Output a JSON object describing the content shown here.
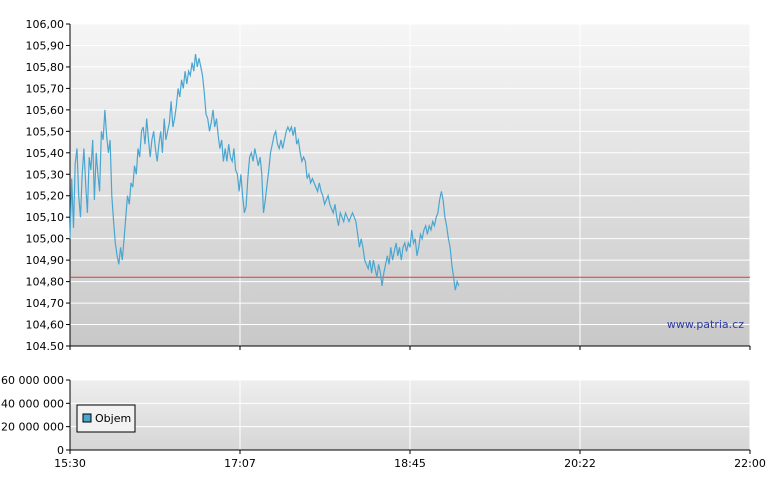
{
  "chart_data": [
    {
      "type": "line",
      "ylim": [
        104.5,
        106.0
      ],
      "y_ticks": [
        "104.50",
        "104,60",
        "104,70",
        "104,80",
        "104,90",
        "105,00",
        "105,10",
        "105,20",
        "105,30",
        "105,40",
        "105,50",
        "105,60",
        "105,70",
        "105,80",
        "105,90",
        "106,00"
      ],
      "x_ticks": [
        "15:30",
        "17:07",
        "18:45",
        "20:22",
        "22:00"
      ],
      "x_range_minutes": [
        930,
        1320
      ],
      "reference_line": {
        "value": 104.82,
        "color": "#e03a3a"
      },
      "line_color": "#4aa6d0",
      "watermark": "www.patria.cz",
      "grid": true,
      "series": [
        {
          "points": [
            [
              930,
              105.0
            ],
            [
              931,
              105.28
            ],
            [
              932,
              105.05
            ],
            [
              933,
              105.35
            ],
            [
              934,
              105.42
            ],
            [
              935,
              105.2
            ],
            [
              936,
              105.1
            ],
            [
              937,
              105.3
            ],
            [
              938,
              105.42
            ],
            [
              939,
              105.25
            ],
            [
              940,
              105.12
            ],
            [
              941,
              105.38
            ],
            [
              942,
              105.32
            ],
            [
              943,
              105.46
            ],
            [
              944,
              105.18
            ],
            [
              945,
              105.4
            ],
            [
              946,
              105.3
            ],
            [
              947,
              105.22
            ],
            [
              948,
              105.5
            ],
            [
              949,
              105.46
            ],
            [
              950,
              105.6
            ],
            [
              951,
              105.48
            ],
            [
              952,
              105.4
            ],
            [
              953,
              105.46
            ],
            [
              954,
              105.2
            ],
            [
              955,
              105.08
            ],
            [
              956,
              104.98
            ],
            [
              957,
              104.92
            ],
            [
              958,
              104.88
            ],
            [
              959,
              104.96
            ],
            [
              960,
              104.9
            ],
            [
              961,
              105.0
            ],
            [
              962,
              105.1
            ],
            [
              963,
              105.2
            ],
            [
              964,
              105.16
            ],
            [
              965,
              105.26
            ],
            [
              966,
              105.24
            ],
            [
              967,
              105.34
            ],
            [
              968,
              105.3
            ],
            [
              969,
              105.42
            ],
            [
              970,
              105.38
            ],
            [
              971,
              105.5
            ],
            [
              972,
              105.52
            ],
            [
              973,
              105.44
            ],
            [
              974,
              105.56
            ],
            [
              975,
              105.46
            ],
            [
              976,
              105.38
            ],
            [
              977,
              105.46
            ],
            [
              978,
              105.5
            ],
            [
              979,
              105.42
            ],
            [
              980,
              105.36
            ],
            [
              981,
              105.44
            ],
            [
              982,
              105.5
            ],
            [
              983,
              105.4
            ],
            [
              984,
              105.56
            ],
            [
              985,
              105.46
            ],
            [
              986,
              105.5
            ],
            [
              987,
              105.54
            ],
            [
              988,
              105.64
            ],
            [
              989,
              105.52
            ],
            [
              990,
              105.56
            ],
            [
              991,
              105.62
            ],
            [
              992,
              105.7
            ],
            [
              993,
              105.66
            ],
            [
              994,
              105.74
            ],
            [
              995,
              105.7
            ],
            [
              996,
              105.78
            ],
            [
              997,
              105.72
            ],
            [
              998,
              105.78
            ],
            [
              999,
              105.76
            ],
            [
              1000,
              105.82
            ],
            [
              1001,
              105.78
            ],
            [
              1002,
              105.86
            ],
            [
              1003,
              105.8
            ],
            [
              1004,
              105.84
            ],
            [
              1005,
              105.8
            ],
            [
              1006,
              105.76
            ],
            [
              1007,
              105.68
            ],
            [
              1008,
              105.58
            ],
            [
              1009,
              105.56
            ],
            [
              1010,
              105.5
            ],
            [
              1011,
              105.54
            ],
            [
              1012,
              105.6
            ],
            [
              1013,
              105.52
            ],
            [
              1014,
              105.56
            ],
            [
              1015,
              105.48
            ],
            [
              1016,
              105.42
            ],
            [
              1017,
              105.46
            ],
            [
              1018,
              105.36
            ],
            [
              1019,
              105.42
            ],
            [
              1020,
              105.36
            ],
            [
              1021,
              105.44
            ],
            [
              1022,
              105.38
            ],
            [
              1023,
              105.36
            ],
            [
              1024,
              105.42
            ],
            [
              1025,
              105.32
            ],
            [
              1026,
              105.3
            ],
            [
              1027,
              105.22
            ],
            [
              1028,
              105.3
            ],
            [
              1029,
              105.2
            ],
            [
              1030,
              105.12
            ],
            [
              1031,
              105.15
            ],
            [
              1032,
              105.28
            ],
            [
              1033,
              105.38
            ],
            [
              1034,
              105.4
            ],
            [
              1035,
              105.36
            ],
            [
              1036,
              105.42
            ],
            [
              1037,
              105.38
            ],
            [
              1038,
              105.34
            ],
            [
              1039,
              105.38
            ],
            [
              1040,
              105.3
            ],
            [
              1041,
              105.12
            ],
            [
              1042,
              105.18
            ],
            [
              1043,
              105.25
            ],
            [
              1044,
              105.32
            ],
            [
              1045,
              105.4
            ],
            [
              1046,
              105.44
            ],
            [
              1047,
              105.48
            ],
            [
              1048,
              105.5
            ],
            [
              1049,
              105.44
            ],
            [
              1050,
              105.42
            ],
            [
              1051,
              105.46
            ],
            [
              1052,
              105.42
            ],
            [
              1053,
              105.46
            ],
            [
              1054,
              105.5
            ],
            [
              1055,
              105.52
            ],
            [
              1056,
              105.5
            ],
            [
              1057,
              105.52
            ],
            [
              1058,
              105.48
            ],
            [
              1059,
              105.52
            ],
            [
              1060,
              105.44
            ],
            [
              1061,
              105.46
            ],
            [
              1062,
              105.4
            ],
            [
              1063,
              105.36
            ],
            [
              1064,
              105.38
            ],
            [
              1065,
              105.36
            ],
            [
              1066,
              105.28
            ],
            [
              1067,
              105.3
            ],
            [
              1068,
              105.26
            ],
            [
              1069,
              105.28
            ],
            [
              1070,
              105.26
            ],
            [
              1071,
              105.24
            ],
            [
              1072,
              105.22
            ],
            [
              1073,
              105.26
            ],
            [
              1074,
              105.22
            ],
            [
              1075,
              105.2
            ],
            [
              1076,
              105.16
            ],
            [
              1077,
              105.18
            ],
            [
              1078,
              105.2
            ],
            [
              1079,
              105.16
            ],
            [
              1080,
              105.14
            ],
            [
              1081,
              105.12
            ],
            [
              1082,
              105.16
            ],
            [
              1083,
              105.1
            ],
            [
              1084,
              105.06
            ],
            [
              1085,
              105.12
            ],
            [
              1086,
              105.1
            ],
            [
              1087,
              105.08
            ],
            [
              1088,
              105.12
            ],
            [
              1089,
              105.1
            ],
            [
              1090,
              105.08
            ],
            [
              1091,
              105.1
            ],
            [
              1092,
              105.12
            ],
            [
              1093,
              105.1
            ],
            [
              1094,
              105.08
            ],
            [
              1095,
              105.02
            ],
            [
              1096,
              104.96
            ],
            [
              1097,
              105.0
            ],
            [
              1098,
              104.96
            ],
            [
              1099,
              104.9
            ],
            [
              1100,
              104.88
            ],
            [
              1101,
              104.86
            ],
            [
              1102,
              104.9
            ],
            [
              1103,
              104.84
            ],
            [
              1104,
              104.9
            ],
            [
              1105,
              104.86
            ],
            [
              1106,
              104.82
            ],
            [
              1107,
              104.88
            ],
            [
              1108,
              104.84
            ],
            [
              1109,
              104.78
            ],
            [
              1110,
              104.84
            ],
            [
              1111,
              104.88
            ],
            [
              1112,
              104.92
            ],
            [
              1113,
              104.88
            ],
            [
              1114,
              104.96
            ],
            [
              1115,
              104.9
            ],
            [
              1116,
              104.94
            ],
            [
              1117,
              104.98
            ],
            [
              1118,
              104.92
            ],
            [
              1119,
              104.96
            ],
            [
              1120,
              104.9
            ],
            [
              1121,
              104.96
            ],
            [
              1122,
              104.98
            ],
            [
              1123,
              104.94
            ],
            [
              1124,
              104.98
            ],
            [
              1125,
              104.96
            ],
            [
              1126,
              105.04
            ],
            [
              1127,
              104.98
            ],
            [
              1128,
              105.0
            ],
            [
              1129,
              104.92
            ],
            [
              1130,
              104.96
            ],
            [
              1131,
              105.02
            ],
            [
              1132,
              105.0
            ],
            [
              1133,
              105.04
            ],
            [
              1134,
              105.06
            ],
            [
              1135,
              105.02
            ],
            [
              1136,
              105.06
            ],
            [
              1137,
              105.04
            ],
            [
              1138,
              105.08
            ],
            [
              1139,
              105.06
            ],
            [
              1140,
              105.1
            ],
            [
              1141,
              105.12
            ],
            [
              1142,
              105.18
            ],
            [
              1143,
              105.22
            ],
            [
              1144,
              105.18
            ],
            [
              1145,
              105.1
            ],
            [
              1146,
              105.06
            ],
            [
              1147,
              105.0
            ],
            [
              1148,
              104.96
            ],
            [
              1149,
              104.88
            ],
            [
              1150,
              104.82
            ],
            [
              1151,
              104.76
            ],
            [
              1152,
              104.8
            ],
            [
              1153,
              104.78
            ]
          ]
        }
      ]
    },
    {
      "type": "bar",
      "ylim": [
        0,
        60000000
      ],
      "y_ticks": [
        "0",
        "20 000 000",
        "40 000 000",
        "60 000 000"
      ],
      "x_ticks": [
        "15:30",
        "17:07",
        "18:45",
        "20:22",
        "22:00"
      ],
      "legend": {
        "position": "top-left",
        "label": "Objem",
        "color": "#4aa6d0"
      },
      "grid": true,
      "series": [
        {
          "name": "Objem",
          "values": []
        }
      ]
    }
  ]
}
